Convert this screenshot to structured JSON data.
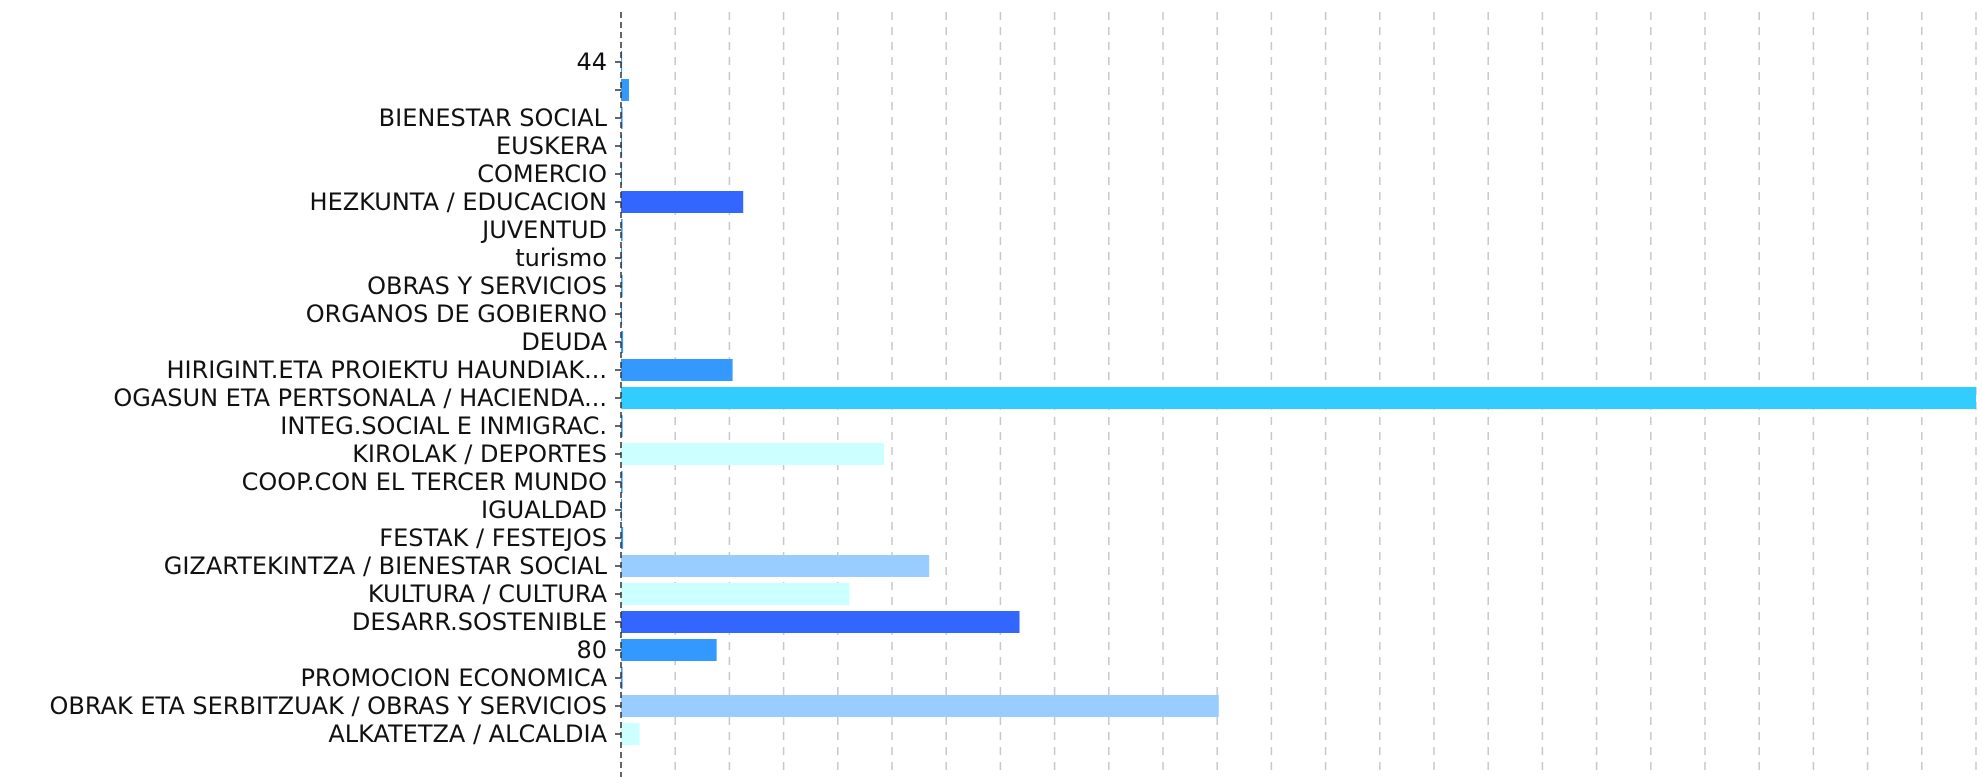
{
  "chart_data": {
    "type": "bar",
    "orientation": "horizontal",
    "title": "",
    "xlabel": "",
    "ylabel": "",
    "xlim": [
      0,
      25.5
    ],
    "grid": "vertical dashed",
    "legend": "none",
    "categories": [
      "44",
      "",
      "BIENESTAR SOCIAL",
      "EUSKERA",
      "COMERCIO",
      "HEZKUNTA / EDUCACION",
      "JUVENTUD",
      "turismo",
      "OBRAS Y SERVICIOS",
      "ORGANOS DE GOBIERNO",
      "DEUDA",
      "HIRIGINT.ETA PROIEKTU HAUNDIAK...",
      "OGASUN ETA PERTSONALA / HACIENDA...",
      "INTEG.SOCIAL E INMIGRAC.",
      "KIROLAK / DEPORTES",
      "COOP.CON EL TERCER MUNDO",
      "IGUALDAD",
      "FESTAK / FESTEJOS",
      "GIZARTEKINTZA / BIENESTAR SOCIAL",
      "KULTURA / CULTURA",
      "DESARR.SOSTENIBLE",
      "80",
      "PROMOCION ECONOMICA",
      "OBRAK ETA SERBITZUAK / OBRAS Y SERVICIOS",
      "ALKATETZA / ALCALDIA"
    ],
    "values": [
      0.02,
      0.15,
      0.03,
      0.02,
      0.02,
      2.3,
      0.03,
      0.02,
      0.03,
      0.02,
      0.04,
      2.1,
      25.5,
      0.03,
      4.95,
      0.03,
      0.02,
      0.04,
      5.8,
      4.3,
      7.5,
      1.8,
      0.03,
      11.25,
      0.35
    ],
    "colors": [
      "#3399ff",
      "#3399ff",
      "#3399ff",
      "#3399ff",
      "#3399ff",
      "#3366ff",
      "#3399ff",
      "#3399ff",
      "#3399ff",
      "#3399ff",
      "#3399ff",
      "#3399ff",
      "#33ccff",
      "#3399ff",
      "#ccffff",
      "#3399ff",
      "#3399ff",
      "#3399ff",
      "#99ccff",
      "#ccffff",
      "#3366ff",
      "#3399ff",
      "#3399ff",
      "#99ccff",
      "#ccffff"
    ]
  }
}
